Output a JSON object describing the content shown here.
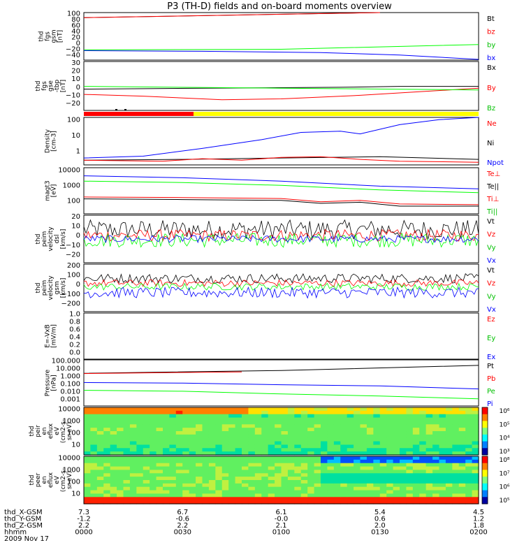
{
  "title": "P3 (TH-D) fields and on-board moments overview",
  "colors": {
    "black": "#000000",
    "red": "#ff0000",
    "green": "#00ff00",
    "blue": "#0000ff",
    "bar_red": "#ff0000",
    "bar_yellow": "#ffff00"
  },
  "chart_data": [
    {
      "type": "line",
      "panel": "fgs_gsm",
      "ylabel": [
        "thd",
        "fgs",
        "gsm",
        "[nT]"
      ],
      "ylim": [
        -40,
        100
      ],
      "yticks": [
        "100",
        "80",
        "60",
        "40",
        "20",
        "0",
        "−20",
        "−40"
      ],
      "legend": [
        {
          "label": "Bt",
          "color": "#000000"
        },
        {
          "label": "bz",
          "color": "#ff0000"
        },
        {
          "label": "by",
          "color": "#00c000"
        },
        {
          "label": "bx",
          "color": "#0000ff"
        }
      ],
      "series": [
        {
          "name": "Bt",
          "color": "#000000",
          "x": [
            0,
            1.5
          ],
          "y": [
            85,
            100
          ]
        },
        {
          "name": "bz",
          "color": "#ff0000",
          "x": [
            0,
            1.5
          ],
          "y": [
            85,
            100
          ]
        },
        {
          "name": "by",
          "color": "#00ff00",
          "x": [
            0,
            1.0,
            2.0
          ],
          "y": [
            -10,
            -8,
            6
          ]
        },
        {
          "name": "bx",
          "color": "#0000ff",
          "x": [
            0,
            0.6,
            1.2,
            1.6,
            2.0
          ],
          "y": [
            -12,
            -14,
            -18,
            -25,
            -38
          ]
        }
      ]
    },
    {
      "type": "line",
      "panel": "fgs_gse",
      "ylabel": [
        "thd",
        "fgs",
        "gse",
        "-tbp",
        "[nT]"
      ],
      "ylim": [
        -25,
        30
      ],
      "yticks": [
        "30",
        "20",
        "10",
        "0",
        "−10",
        "−20"
      ],
      "legend": [
        {
          "label": "Bx",
          "color": "#000000"
        },
        {
          "label": "By",
          "color": "#ff0000"
        },
        {
          "label": "Bz",
          "color": "#00c000"
        }
      ],
      "series": [
        {
          "name": "Bx",
          "color": "#000000",
          "x": [
            0,
            0.6,
            1.3,
            1.6,
            2.0
          ],
          "y": [
            -1,
            0,
            1,
            2,
            2
          ]
        },
        {
          "name": "By",
          "color": "#ff0000",
          "x": [
            0,
            0.3,
            0.7,
            1.0,
            1.4,
            1.7,
            2.0
          ],
          "y": [
            -7,
            -9,
            -13,
            -12,
            -8,
            -4,
            0
          ]
        },
        {
          "name": "Bz",
          "color": "#00ff00",
          "x": [
            0,
            1.0,
            2.0
          ],
          "y": [
            2,
            0,
            -2
          ]
        }
      ]
    },
    {
      "type": "line",
      "panel": "density",
      "ylabel": [
        "Density",
        "[cm-3]"
      ],
      "ylim": [
        0.5,
        200
      ],
      "log": true,
      "yticks": [
        "100",
        "10",
        "1"
      ],
      "legend": [
        {
          "label": "Ne",
          "color": "#ff0000"
        },
        {
          "label": "Ni",
          "color": "#000000"
        },
        {
          "label": "Npot",
          "color": "#0000ff"
        }
      ],
      "series": [
        {
          "name": "Npot",
          "color": "#0000ff",
          "x": [
            0,
            0.3,
            0.6,
            0.9,
            1.1,
            1.3,
            1.4,
            1.6,
            1.8,
            2.0
          ],
          "y": [
            1.2,
            1.5,
            4,
            12,
            30,
            35,
            25,
            80,
            150,
            200
          ]
        },
        {
          "name": "Ni",
          "color": "#000000",
          "x": [
            0,
            0.5,
            1.0,
            1.5,
            2.0
          ],
          "y": [
            0.9,
            1.0,
            1.2,
            1.4,
            1.0
          ]
        },
        {
          "name": "Ne",
          "color": "#ff0000",
          "x": [
            0,
            0.4,
            0.6,
            0.8,
            1.0,
            1.2,
            1.4,
            1.6,
            2.0
          ],
          "y": [
            0.9,
            0.8,
            1.1,
            0.9,
            1.3,
            1.4,
            1.0,
            0.8,
            0.7
          ]
        }
      ]
    },
    {
      "type": "line",
      "panel": "magt3",
      "ylabel": [
        "magt3",
        "[eV]"
      ],
      "ylim": [
        40,
        10000
      ],
      "log": true,
      "yticks": [
        "10000",
        "1000",
        "100"
      ],
      "legend": [
        {
          "label": "Te⊥",
          "color": "#ff0000"
        },
        {
          "label": "Te||",
          "color": "#000000"
        },
        {
          "label": "Ti⊥",
          "color": "#ff0000"
        },
        {
          "label": "Ti||",
          "color": "#00c000"
        }
      ],
      "series": [
        {
          "name": "Ti||-blue",
          "color": "#0000ff",
          "x": [
            0,
            0.5,
            1.0,
            1.5,
            2.0
          ],
          "y": [
            3800,
            3000,
            2000,
            1100,
            800
          ]
        },
        {
          "name": "Ti||",
          "color": "#00ff00",
          "x": [
            0,
            0.5,
            1.0,
            1.5,
            2.0
          ],
          "y": [
            2000,
            1700,
            1200,
            700,
            500
          ]
        },
        {
          "name": "Te⊥",
          "color": "#ff0000",
          "x": [
            0,
            0.5,
            1.0,
            1.2,
            1.4,
            1.6,
            2.0
          ],
          "y": [
            300,
            280,
            250,
            170,
            200,
            130,
            120
          ]
        },
        {
          "name": "Te||",
          "color": "#000000",
          "x": [
            0,
            0.5,
            1.0,
            1.2,
            1.4,
            1.6,
            2.0
          ],
          "y": [
            240,
            220,
            200,
            140,
            160,
            100,
            100
          ]
        }
      ]
    },
    {
      "type": "line",
      "panel": "peim_velocity_dsl",
      "ylabel": [
        "thd",
        "peim",
        "velocity",
        "dsl",
        "[km/s]"
      ],
      "ylim": [
        -20,
        20
      ],
      "yticks": [
        "20",
        "10",
        "0",
        "−10",
        "−20"
      ],
      "legend": [
        {
          "label": "Vt",
          "color": "#000000"
        },
        {
          "label": "Vz",
          "color": "#ff0000"
        },
        {
          "label": "Vy",
          "color": "#00c000"
        },
        {
          "label": "Vx",
          "color": "#0000ff"
        }
      ],
      "noise": [
        {
          "name": "Vt",
          "color": "#000000",
          "base": 8,
          "amp": 8
        },
        {
          "name": "Vz",
          "color": "#ff0000",
          "base": 3,
          "amp": 5
        },
        {
          "name": "Vy",
          "color": "#00ff00",
          "base": -1,
          "amp": 6
        },
        {
          "name": "Vx",
          "color": "#0000ff",
          "base": 0,
          "amp": 3
        }
      ]
    },
    {
      "type": "line",
      "panel": "peim_velocity_gsm",
      "ylabel": [
        "thd",
        "peim",
        "velocity",
        "gsm",
        "[km/s]"
      ],
      "ylim": [
        -200,
        200
      ],
      "yticks": [
        "200",
        "100",
        "0",
        "−100",
        "−200"
      ],
      "legend": [
        {
          "label": "Vt",
          "color": "#000000"
        },
        {
          "label": "Vz",
          "color": "#ff0000"
        },
        {
          "label": "Vy",
          "color": "#00c000"
        },
        {
          "label": "Vx",
          "color": "#0000ff"
        }
      ],
      "noise": [
        {
          "name": "Vt",
          "color": "#000000",
          "base": 80,
          "amp": 40
        },
        {
          "name": "Vz",
          "color": "#ff0000",
          "base": 40,
          "amp": 30
        },
        {
          "name": "Vy",
          "color": "#00ff00",
          "base": 10,
          "amp": 30
        },
        {
          "name": "Vx",
          "color": "#0000ff",
          "base": -40,
          "amp": 45
        }
      ]
    },
    {
      "type": "line",
      "panel": "e_vxb",
      "ylabel": [
        "E=-VxB",
        "[mV/m]"
      ],
      "ylim": [
        0,
        1
      ],
      "yticks": [
        "1.0",
        "0.8",
        "0.6",
        "0.4",
        "0.2",
        "0.0"
      ],
      "legend": [
        {
          "label": "Ez",
          "color": "#ff0000"
        },
        {
          "label": "Ey",
          "color": "#00c000"
        },
        {
          "label": "Ex",
          "color": "#0000ff"
        }
      ],
      "series": []
    },
    {
      "type": "line",
      "panel": "pressure",
      "ylabel": [
        "Pressure",
        "[nPa]"
      ],
      "ylim": [
        0.001,
        100
      ],
      "log": true,
      "yticks": [
        "100.000",
        "10.000",
        "1.000",
        "0.100",
        "0.010",
        "0.001"
      ],
      "legend": [
        {
          "label": "Pt",
          "color": "#000000"
        },
        {
          "label": "Pb",
          "color": "#ff0000"
        },
        {
          "label": "Pe",
          "color": "#00c000"
        },
        {
          "label": "Pi",
          "color": "#0000ff"
        }
      ],
      "series": [
        {
          "name": "Pt",
          "color": "#000000",
          "x": [
            0,
            1.0,
            2.0
          ],
          "y": [
            3.5,
            7,
            25
          ]
        },
        {
          "name": "Pb",
          "color": "#ff0000",
          "x": [
            0,
            0.8
          ],
          "y": [
            3.3,
            5
          ]
        },
        {
          "name": "Pi",
          "color": "#0000ff",
          "x": [
            0,
            0.5,
            1.0,
            1.5,
            2.0
          ],
          "y": [
            0.35,
            0.3,
            0.2,
            0.15,
            0.07
          ]
        },
        {
          "name": "Pe",
          "color": "#00ff00",
          "x": [
            0,
            0.5,
            1.0,
            1.5,
            2.0
          ],
          "y": [
            0.05,
            0.04,
            0.02,
            0.012,
            0.006
          ]
        }
      ]
    },
    {
      "type": "heatmap",
      "panel": "peir_eflux",
      "ylabel": [
        "thd",
        "peir",
        "en",
        "eflux",
        "eV",
        "(cm2-s-",
        "sr-eV)"
      ],
      "yticks": [
        "10000",
        "1000",
        "100",
        "10"
      ],
      "colorbar_ticks": [
        "10⁶",
        "10⁵",
        "10⁴",
        "10³"
      ]
    },
    {
      "type": "heatmap",
      "panel": "peer_eflux",
      "ylabel": [
        "thd",
        "peer",
        "en",
        "eflux",
        "eV",
        "(cm2-s-",
        "sr-eV)"
      ],
      "yticks": [
        "10000",
        "1000",
        "100",
        "10"
      ],
      "colorbar_ticks": [
        "10⁸",
        "10⁷",
        "10⁶",
        "10⁵"
      ]
    }
  ],
  "x_axis": {
    "labels": [
      "thd_X-GSM",
      "thd_Y-GSM",
      "thd_Z-GSM",
      "hhmm",
      "2009 Nov 17"
    ],
    "columns": [
      [
        "7.3",
        "-1.2",
        "2.2",
        "0000"
      ],
      [
        "6.7",
        "-0.6",
        "2.2",
        "0030"
      ],
      [
        "6.1",
        "-0.0",
        "2.1",
        "0100"
      ],
      [
        "5.4",
        "0.6",
        "2.0",
        "0130"
      ],
      [
        "4.5",
        "1.2",
        "1.8",
        "0200"
      ]
    ]
  }
}
